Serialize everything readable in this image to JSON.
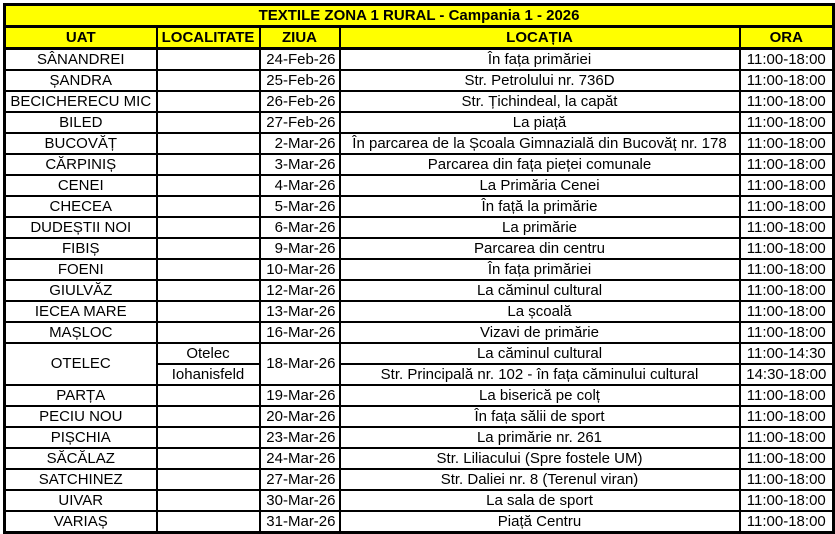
{
  "title": "TEXTILE ZONA 1 RURAL - Campania 1 - 2026",
  "columns": [
    "UAT",
    "LOCALITATE",
    "ZIUA",
    "LOCAȚIA",
    "ORA"
  ],
  "colors": {
    "title_bg": "#ffff00",
    "header_bg": "#ffff00",
    "border_color": "#000000",
    "text_color": "#000000",
    "body_bg": "#ffffff"
  },
  "rows": [
    {
      "uat": "SÂNANDREI",
      "localitate": "",
      "ziua": "24-Feb-26",
      "locatia": "În fața primăriei",
      "ora": "11:00-18:00"
    },
    {
      "uat": "ȘANDRA",
      "localitate": "",
      "ziua": "25-Feb-26",
      "locatia": "Str. Petrolului nr. 736D",
      "ora": "11:00-18:00"
    },
    {
      "uat": "BECICHERECU MIC",
      "localitate": "",
      "ziua": "26-Feb-26",
      "locatia": "Str. Țichindeal, la capăt",
      "ora": "11:00-18:00"
    },
    {
      "uat": "BILED",
      "localitate": "",
      "ziua": "27-Feb-26",
      "locatia": "La piață",
      "ora": "11:00-18:00"
    },
    {
      "uat": "BUCOVĂȚ",
      "localitate": "",
      "ziua": "2-Mar-26",
      "locatia": "În parcarea de la Școala Gimnazială din Bucovăț nr. 178",
      "ora": "11:00-18:00"
    },
    {
      "uat": "CĂRPINIȘ",
      "localitate": "",
      "ziua": "3-Mar-26",
      "locatia": "Parcarea din fața pieței comunale",
      "ora": "11:00-18:00"
    },
    {
      "uat": "CENEI",
      "localitate": "",
      "ziua": "4-Mar-26",
      "locatia": "La Primăria Cenei",
      "ora": "11:00-18:00"
    },
    {
      "uat": "CHECEA",
      "localitate": "",
      "ziua": "5-Mar-26",
      "locatia": "În față la primărie",
      "ora": "11:00-18:00"
    },
    {
      "uat": "DUDEȘTII NOI",
      "localitate": "",
      "ziua": "6-Mar-26",
      "locatia": "La primărie",
      "ora": "11:00-18:00"
    },
    {
      "uat": "FIBIȘ",
      "localitate": "",
      "ziua": "9-Mar-26",
      "locatia": "Parcarea din centru",
      "ora": "11:00-18:00"
    },
    {
      "uat": "FOENI",
      "localitate": "",
      "ziua": "10-Mar-26",
      "locatia": "În fața primăriei",
      "ora": "11:00-18:00"
    },
    {
      "uat": "GIULVĂZ",
      "localitate": "",
      "ziua": "12-Mar-26",
      "locatia": "La căminul cultural",
      "ora": "11:00-18:00"
    },
    {
      "uat": "IECEA MARE",
      "localitate": "",
      "ziua": "13-Mar-26",
      "locatia": "La școală",
      "ora": "11:00-18:00"
    },
    {
      "uat": "MAȘLOC",
      "localitate": "",
      "ziua": "16-Mar-26",
      "locatia": "Vizavi de primărie",
      "ora": "11:00-18:00"
    },
    {
      "uat": "OTELEC",
      "uat_span": 2,
      "localitate": "Otelec",
      "ziua": "18-Mar-26",
      "ziua_span": 2,
      "locatia": "La căminul cultural",
      "ora": "11:00-14:30"
    },
    {
      "localitate": "Iohanisfeld",
      "locatia": "Str. Principală nr. 102 - în fața căminului cultural",
      "ora": "14:30-18:00"
    },
    {
      "uat": "PARȚA",
      "localitate": "",
      "ziua": "19-Mar-26",
      "locatia": "La biserică pe colț",
      "ora": "11:00-18:00"
    },
    {
      "uat": "PECIU NOU",
      "localitate": "",
      "ziua": "20-Mar-26",
      "locatia": "În fața sălii de sport",
      "ora": "11:00-18:00"
    },
    {
      "uat": "PIȘCHIA",
      "localitate": "",
      "ziua": "23-Mar-26",
      "locatia": "La primărie nr. 261",
      "ora": "11:00-18:00"
    },
    {
      "uat": "SĂCĂLAZ",
      "localitate": "",
      "ziua": "24-Mar-26",
      "locatia": "Str. Liliacului (Spre fostele UM)",
      "ora": "11:00-18:00"
    },
    {
      "uat": "SATCHINEZ",
      "localitate": "",
      "ziua": "27-Mar-26",
      "locatia": "Str. Daliei nr. 8 (Terenul viran)",
      "ora": "11:00-18:00"
    },
    {
      "uat": "UIVAR",
      "localitate": "",
      "ziua": "30-Mar-26",
      "locatia": "La sala de sport",
      "ora": "11:00-18:00"
    },
    {
      "uat": "VARIAȘ",
      "localitate": "",
      "ziua": "31-Mar-26",
      "locatia": "Piață Centru",
      "ora": "11:00-18:00"
    }
  ]
}
